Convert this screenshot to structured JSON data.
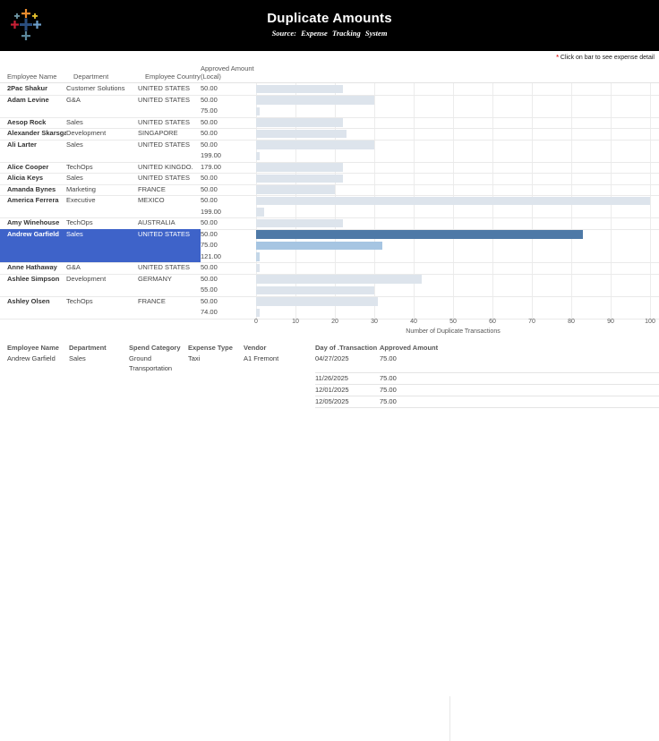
{
  "header": {
    "title": "Duplicate Amounts",
    "subtitle": "Source: Expense Tracking System"
  },
  "note": {
    "star": "*",
    "text": " Click on bar to see expense detail"
  },
  "table_headers": {
    "employee": "Employee Name",
    "department": "Department",
    "country": "Employee Country",
    "amount_line1": "Approved Amount",
    "amount_line2": "(Local)"
  },
  "colors": {
    "bar_default": "#dde4ec",
    "bar_selected": "#4e79a7",
    "bar_medium": "#a6c5e2",
    "bar_light": "#c4d7e8",
    "highlight": "#3e63c9",
    "note_star": "#e03131"
  },
  "chart_data": {
    "type": "bar",
    "title": "Duplicate Amounts",
    "xlabel": "Number of Duplicate Transactions",
    "xlim": [
      0,
      100
    ],
    "x_ticks": [
      0,
      10,
      20,
      30,
      40,
      50,
      60,
      70,
      80,
      90,
      100
    ],
    "grid": true,
    "columns": [
      "Employee Name",
      "Department",
      "Employee Country",
      "Approved Amount (Local)"
    ],
    "groups": [
      {
        "employee": "2Pac Shakur",
        "department": "Customer Solutions",
        "country": "UNITED STATES",
        "rows": [
          {
            "amount": "50.00",
            "count": 22
          }
        ]
      },
      {
        "employee": "Adam Levine",
        "department": "G&A",
        "country": "UNITED STATES",
        "rows": [
          {
            "amount": "50.00",
            "count": 30
          },
          {
            "amount": "75.00",
            "count": 1
          }
        ]
      },
      {
        "employee": "Aesop Rock",
        "department": "Sales",
        "country": "UNITED STATES",
        "rows": [
          {
            "amount": "50.00",
            "count": 22
          }
        ]
      },
      {
        "employee": "Alexander Skarsgard",
        "department": "Development",
        "country": "SINGAPORE",
        "rows": [
          {
            "amount": "50.00",
            "count": 23
          }
        ]
      },
      {
        "employee": "Ali Larter",
        "department": "Sales",
        "country": "UNITED STATES",
        "rows": [
          {
            "amount": "50.00",
            "count": 30
          },
          {
            "amount": "199.00",
            "count": 1
          }
        ]
      },
      {
        "employee": "Alice Cooper",
        "department": "TechOps",
        "country": "UNITED KINGDO..",
        "rows": [
          {
            "amount": "179.00",
            "count": 22
          }
        ]
      },
      {
        "employee": "Alicia Keys",
        "department": "Sales",
        "country": "UNITED STATES",
        "rows": [
          {
            "amount": "50.00",
            "count": 22
          }
        ]
      },
      {
        "employee": "Amanda Bynes",
        "department": "Marketing",
        "country": "FRANCE",
        "rows": [
          {
            "amount": "50.00",
            "count": 20
          }
        ]
      },
      {
        "employee": "America Ferrera",
        "department": "Executive",
        "country": "MEXICO",
        "rows": [
          {
            "amount": "50.00",
            "count": 100
          },
          {
            "amount": "199.00",
            "count": 2
          }
        ]
      },
      {
        "employee": "Amy Winehouse",
        "department": "TechOps",
        "country": "AUSTRALIA",
        "rows": [
          {
            "amount": "50.00",
            "count": 22
          }
        ]
      },
      {
        "employee": "Andrew Garfield",
        "department": "Sales",
        "country": "UNITED STATES",
        "selected": true,
        "rows": [
          {
            "amount": "50.00",
            "count": 83,
            "color_key": "bar_selected"
          },
          {
            "amount": "75.00",
            "count": 32,
            "color_key": "bar_medium"
          },
          {
            "amount": "121.00",
            "count": 1,
            "color_key": "bar_light"
          }
        ]
      },
      {
        "employee": "Anne Hathaway",
        "department": "G&A",
        "country": "UNITED STATES",
        "rows": [
          {
            "amount": "50.00",
            "count": 1
          }
        ]
      },
      {
        "employee": "Ashlee Simpson",
        "department": "Development",
        "country": "GERMANY",
        "rows": [
          {
            "amount": "50.00",
            "count": 42
          },
          {
            "amount": "55.00",
            "count": 30
          }
        ]
      },
      {
        "employee": "Ashley Olsen",
        "department": "TechOps",
        "country": "FRANCE",
        "rows": [
          {
            "amount": "50.00",
            "count": 31
          },
          {
            "amount": "74.00",
            "count": 1
          }
        ]
      }
    ]
  },
  "detail_table": {
    "headers": [
      "Employee Name",
      "Department",
      "Spend Category",
      "Expense Type",
      "Vendor",
      "Day of .Transaction ..",
      "Approved Amount"
    ],
    "rows": [
      {
        "employee": "Andrew Garfield",
        "department": "Sales",
        "spend_category": "Ground Transportation",
        "expense_type": "Taxi",
        "vendor": "A1 Fremont",
        "date": "04/27/2025",
        "amount": "75.00"
      },
      {
        "employee": "",
        "department": "",
        "spend_category": "",
        "expense_type": "",
        "vendor": "",
        "date": "11/26/2025",
        "amount": "75.00"
      },
      {
        "employee": "",
        "department": "",
        "spend_category": "",
        "expense_type": "",
        "vendor": "",
        "date": "12/01/2025",
        "amount": "75.00"
      },
      {
        "employee": "",
        "department": "",
        "spend_category": "",
        "expense_type": "",
        "vendor": "",
        "date": "12/05/2025",
        "amount": "75.00"
      }
    ]
  }
}
